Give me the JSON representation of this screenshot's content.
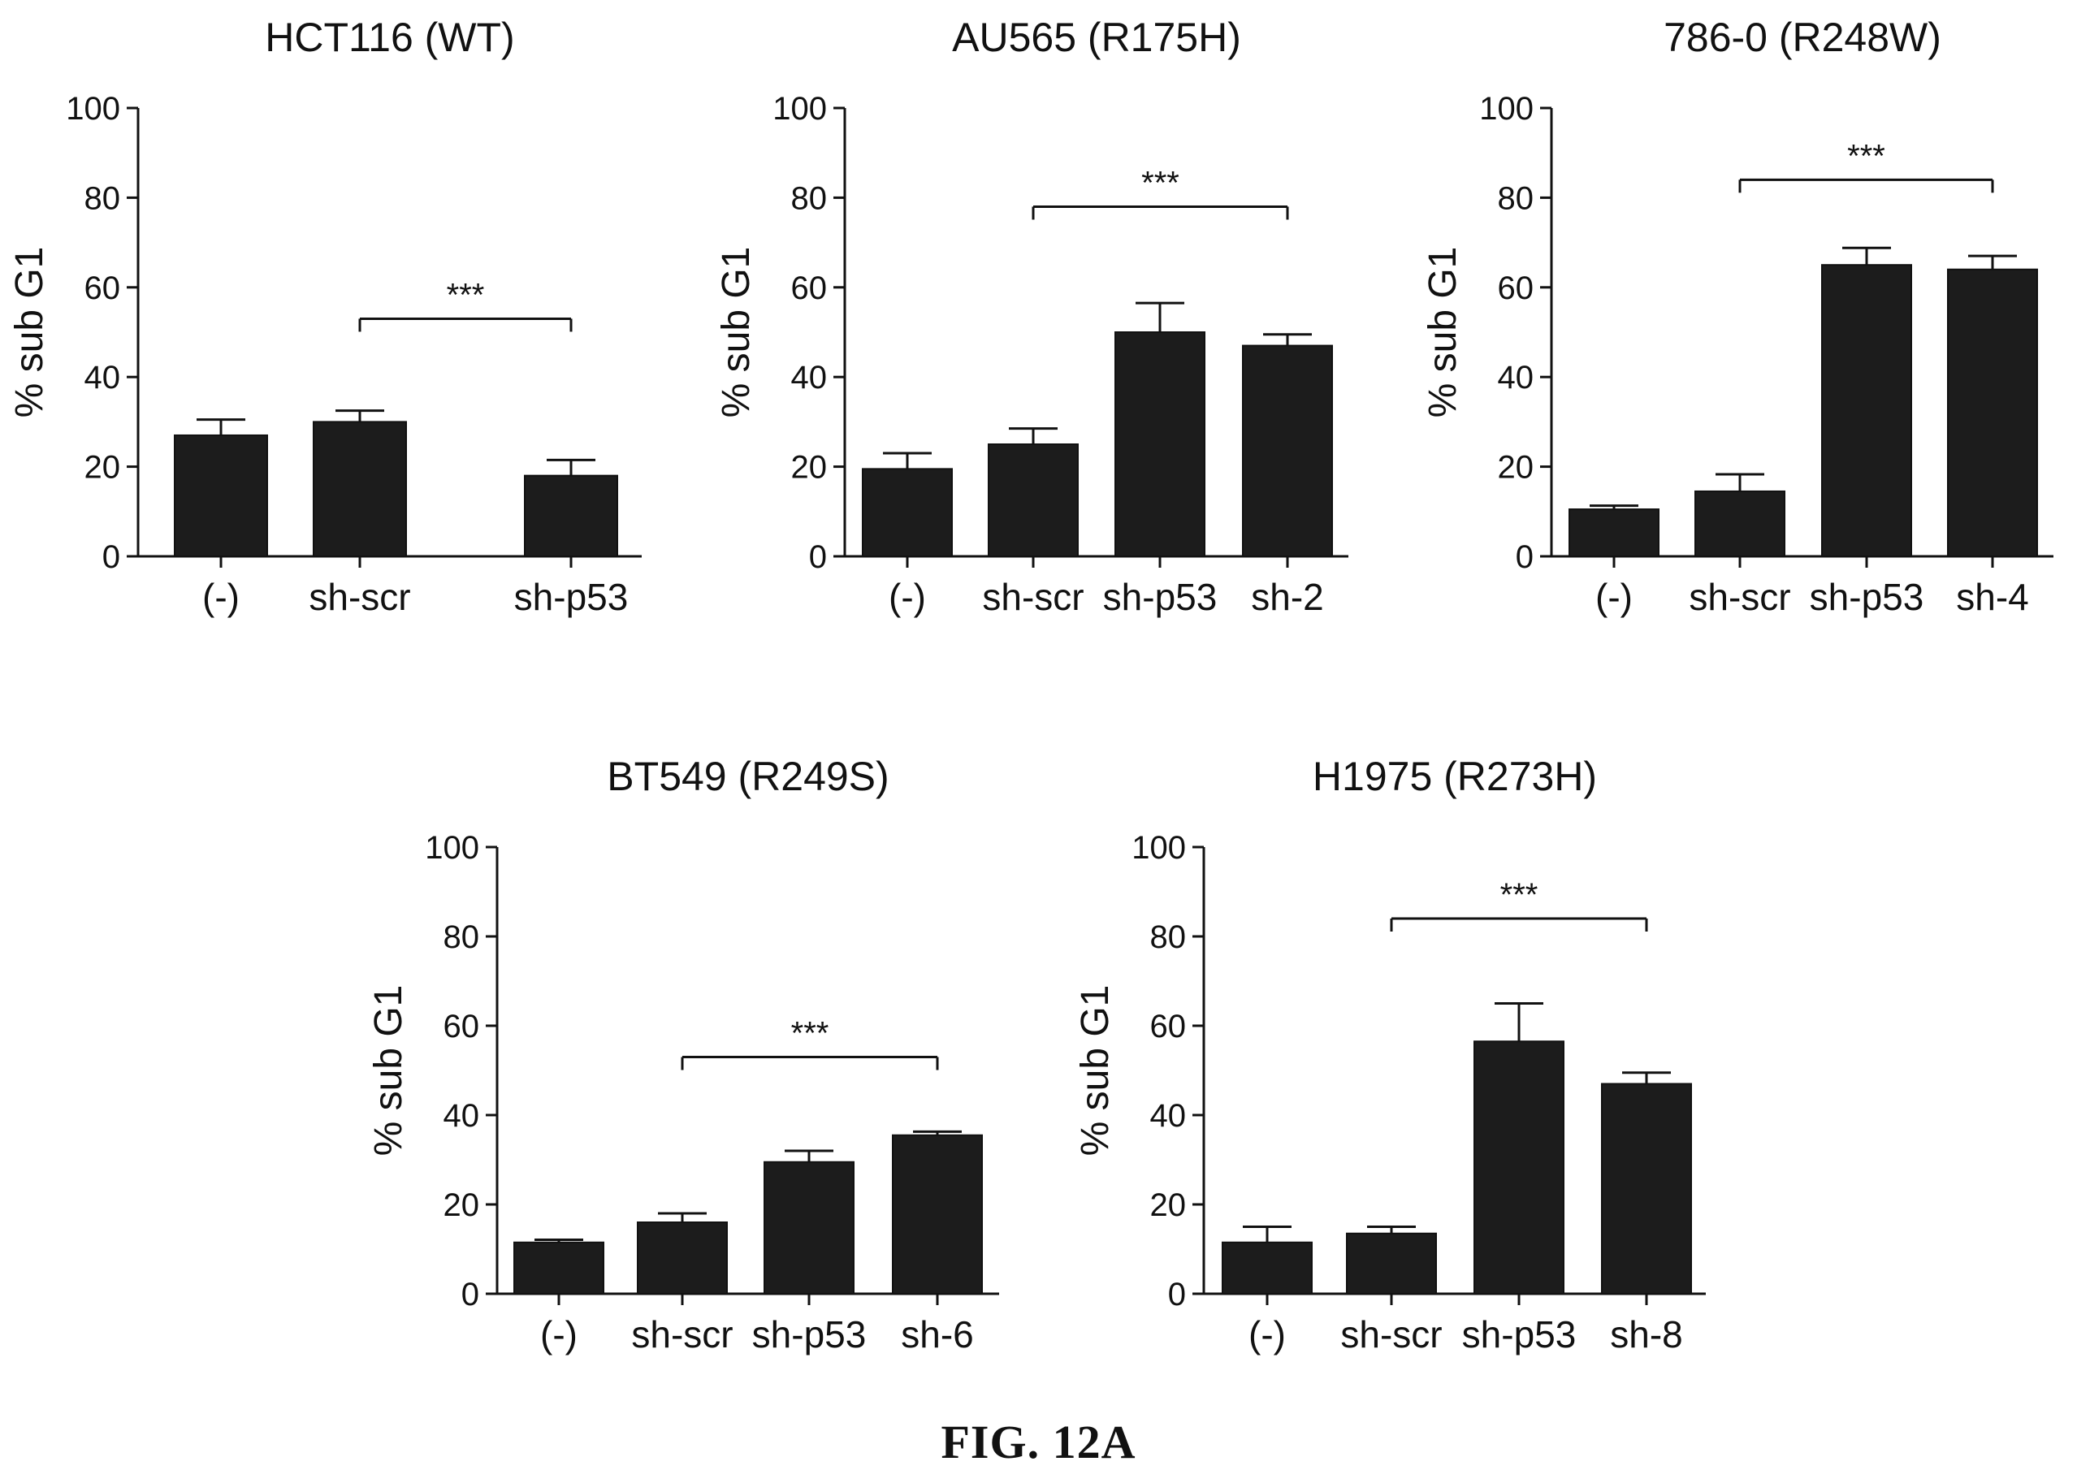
{
  "figure_label": "FIG. 12A",
  "colors": {
    "bar": "#1c1c1c",
    "axis": "#111111",
    "background": "#ffffff"
  },
  "chart_data": [
    {
      "type": "bar",
      "title": "HCT116 (WT)",
      "ylabel": "% sub G1",
      "xlabel": "",
      "ylim": [
        0,
        100
      ],
      "yticks": [
        0,
        20,
        40,
        60,
        80,
        100
      ],
      "categories": [
        "(-)",
        "sh-scr",
        "sh-p53"
      ],
      "values": [
        27,
        30,
        18
      ],
      "errors": [
        3.5,
        2.5,
        3.5
      ],
      "significance": {
        "from": 1,
        "to": 2,
        "label": "***",
        "y": 53
      },
      "grid": false
    },
    {
      "type": "bar",
      "title": "AU565 (R175H)",
      "ylabel": "% sub G1",
      "xlabel": "",
      "ylim": [
        0,
        100
      ],
      "yticks": [
        0,
        20,
        40,
        60,
        80,
        100
      ],
      "categories": [
        "(-)",
        "sh-scr",
        "sh-p53",
        "sh-2"
      ],
      "values": [
        19.5,
        25,
        50,
        47
      ],
      "errors": [
        3.5,
        3.5,
        6.5,
        2.5
      ],
      "significance": {
        "from": 1,
        "to": 3,
        "label": "***",
        "y": 78
      },
      "grid": false
    },
    {
      "type": "bar",
      "title": "786-0 (R248W)",
      "ylabel": "% sub G1",
      "xlabel": "",
      "ylim": [
        0,
        100
      ],
      "yticks": [
        0,
        20,
        40,
        60,
        80,
        100
      ],
      "categories": [
        "(-)",
        "sh-scr",
        "sh-p53",
        "sh-4"
      ],
      "values": [
        10.5,
        14.5,
        65,
        64
      ],
      "errors": [
        0.8,
        3.8,
        3.8,
        3
      ],
      "significance": {
        "from": 1,
        "to": 3,
        "label": "***",
        "y": 84
      },
      "grid": false
    },
    {
      "type": "bar",
      "title": "BT549 (R249S)",
      "ylabel": "% sub G1",
      "xlabel": "",
      "ylim": [
        0,
        100
      ],
      "yticks": [
        0,
        20,
        40,
        60,
        80,
        100
      ],
      "categories": [
        "(-)",
        "sh-scr",
        "sh-p53",
        "sh-6"
      ],
      "values": [
        11.5,
        16,
        29.5,
        35.5
      ],
      "errors": [
        0.6,
        2,
        2.5,
        0.8
      ],
      "significance": {
        "from": 1,
        "to": 3,
        "label": "***",
        "y": 53
      },
      "grid": false
    },
    {
      "type": "bar",
      "title": "H1975 (R273H)",
      "ylabel": "% sub G1",
      "xlabel": "",
      "ylim": [
        0,
        100
      ],
      "yticks": [
        0,
        20,
        40,
        60,
        80,
        100
      ],
      "categories": [
        "(-)",
        "sh-scr",
        "sh-p53",
        "sh-8"
      ],
      "values": [
        11.5,
        13.5,
        56.5,
        47
      ],
      "errors": [
        3.5,
        1.5,
        8.5,
        2.5
      ],
      "significance": {
        "from": 1,
        "to": 3,
        "label": "***",
        "y": 84
      },
      "grid": false
    }
  ]
}
